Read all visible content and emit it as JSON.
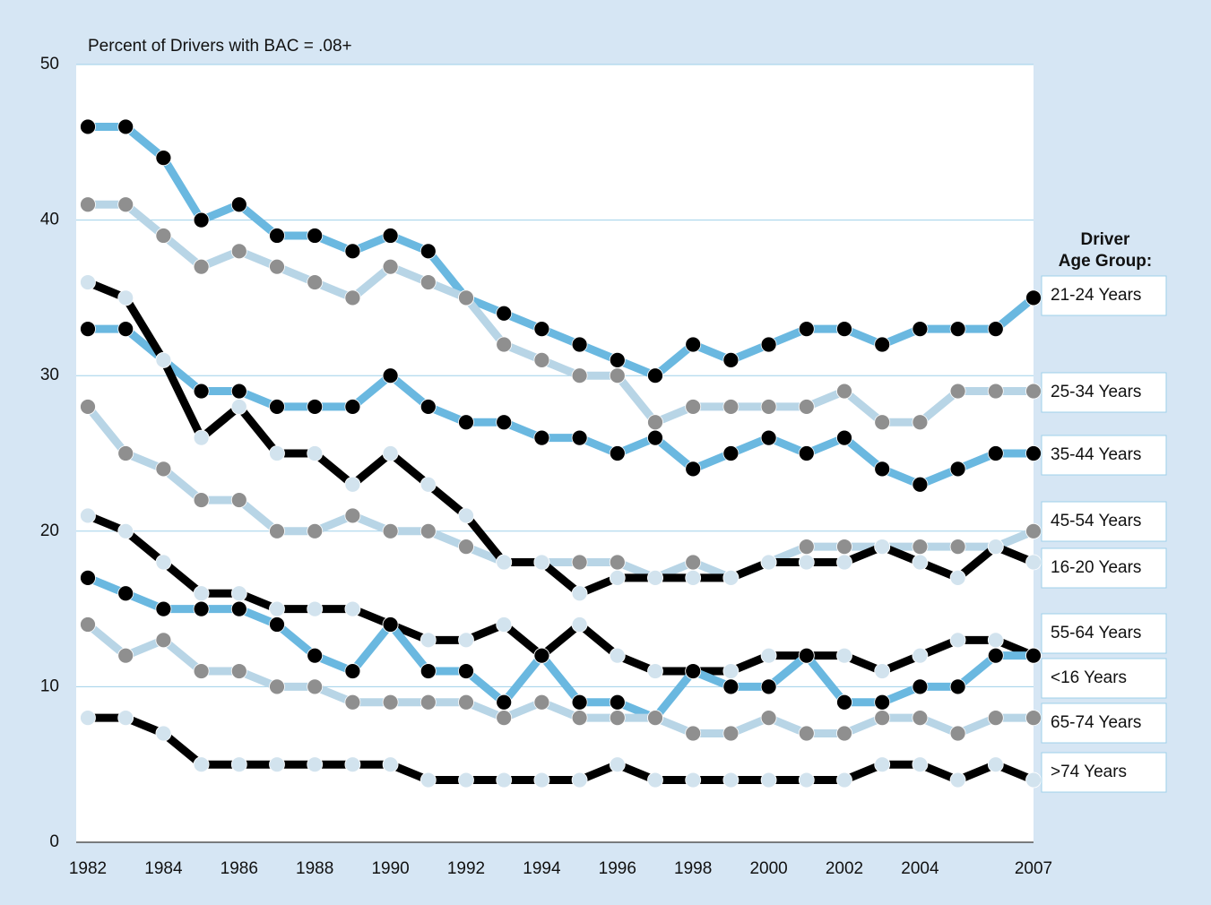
{
  "chart_data": {
    "type": "line",
    "title": "Percent of Drivers with BAC = .08+",
    "legend_title": "Driver\nAge Group:",
    "x": [
      1982,
      1983,
      1984,
      1985,
      1986,
      1987,
      1988,
      1989,
      1990,
      1991,
      1992,
      1993,
      1994,
      1995,
      1996,
      1997,
      1998,
      1999,
      2000,
      2001,
      2002,
      2003,
      2004,
      2005,
      2006,
      2007
    ],
    "xlim": [
      1982,
      2007
    ],
    "xticks": [
      1982,
      1984,
      1986,
      1988,
      1990,
      1992,
      1994,
      1996,
      1998,
      2000,
      2002,
      2004,
      2007
    ],
    "ylim": [
      0,
      50
    ],
    "yticks": [
      0,
      10,
      20,
      30,
      40,
      50
    ],
    "grid": true,
    "legend": "right",
    "series": [
      {
        "name": "21-24 Years",
        "color": "#6ab8e0",
        "marker_color": "#000000",
        "values": [
          46,
          46,
          44,
          40,
          41,
          39,
          39,
          38,
          39,
          38,
          35,
          34,
          33,
          32,
          31,
          30,
          32,
          31,
          32,
          33,
          33,
          32,
          33,
          33,
          33,
          35
        ]
      },
      {
        "name": "25-34 Years",
        "color": "#b8d5e6",
        "marker_color": "#8f8f8f",
        "values": [
          41,
          41,
          39,
          37,
          38,
          37,
          36,
          35,
          37,
          36,
          35,
          32,
          31,
          30,
          30,
          27,
          28,
          28,
          28,
          28,
          29,
          27,
          27,
          29,
          29,
          29
        ]
      },
      {
        "name": "35-44 Years",
        "color": "#6ab8e0",
        "marker_color": "#000000",
        "values": [
          33,
          33,
          31,
          29,
          29,
          28,
          28,
          28,
          30,
          28,
          27,
          27,
          26,
          26,
          25,
          26,
          24,
          25,
          26,
          25,
          26,
          24,
          23,
          24,
          25,
          25
        ]
      },
      {
        "name": "45-54 Years",
        "color": "#b8d5e6",
        "marker_color": "#8f8f8f",
        "values": [
          28,
          25,
          24,
          22,
          22,
          20,
          20,
          21,
          20,
          20,
          19,
          18,
          18,
          18,
          18,
          17,
          18,
          17,
          18,
          19,
          19,
          19,
          19,
          19,
          19,
          20
        ]
      },
      {
        "name": "16-20 Years",
        "color": "#000000",
        "marker_color": "#d2e3ee",
        "values": [
          36,
          35,
          31,
          26,
          28,
          25,
          25,
          23,
          25,
          23,
          21,
          18,
          18,
          16,
          17,
          17,
          17,
          17,
          18,
          18,
          18,
          19,
          18,
          17,
          19,
          18
        ]
      },
      {
        "name": "55-64 Years",
        "color": "#000000",
        "marker_color": "#d2e3ee",
        "values": [
          21,
          20,
          18,
          16,
          16,
          15,
          15,
          15,
          14,
          13,
          13,
          14,
          12,
          14,
          12,
          11,
          11,
          11,
          12,
          12,
          12,
          11,
          12,
          13,
          13,
          12
        ]
      },
      {
        "name": "<16 Years",
        "color": "#6ab8e0",
        "marker_color": "#000000",
        "values": [
          17,
          16,
          15,
          15,
          15,
          14,
          12,
          11,
          14,
          11,
          11,
          9,
          12,
          9,
          9,
          8,
          11,
          10,
          10,
          12,
          9,
          9,
          10,
          10,
          12,
          12
        ]
      },
      {
        "name": "65-74 Years",
        "color": "#b8d5e6",
        "marker_color": "#8f8f8f",
        "values": [
          14,
          12,
          13,
          11,
          11,
          10,
          10,
          9,
          9,
          9,
          9,
          8,
          9,
          8,
          8,
          8,
          7,
          7,
          8,
          7,
          7,
          8,
          8,
          7,
          8,
          8
        ]
      },
      {
        "name": ">74 Years",
        "color": "#000000",
        "marker_color": "#d2e3ee",
        "values": [
          8,
          8,
          7,
          5,
          5,
          5,
          5,
          5,
          5,
          4,
          4,
          4,
          4,
          4,
          5,
          4,
          4,
          4,
          4,
          4,
          4,
          5,
          5,
          4,
          5,
          4
        ]
      }
    ]
  }
}
